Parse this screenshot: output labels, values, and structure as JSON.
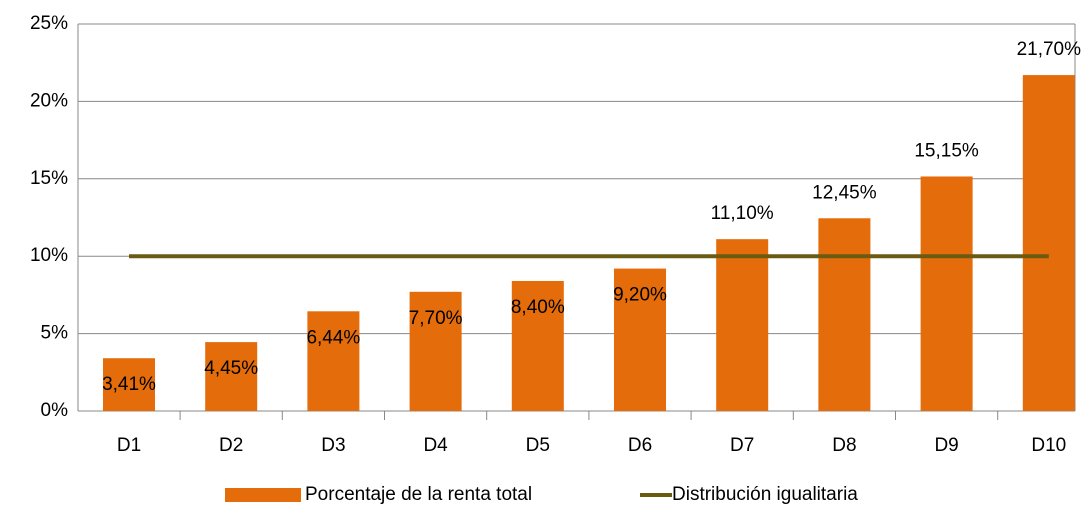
{
  "chart_data": {
    "type": "bar",
    "categories": [
      "D1",
      "D2",
      "D3",
      "D4",
      "D5",
      "D6",
      "D7",
      "D8",
      "D9",
      "D10"
    ],
    "series": [
      {
        "name": "Porcentaje de la renta total",
        "type": "bar",
        "color": "#e46c0a",
        "values": [
          3.41,
          4.45,
          6.44,
          7.7,
          8.4,
          9.2,
          11.1,
          12.45,
          15.15,
          21.7
        ],
        "value_labels": [
          "3,41%",
          "4,45%",
          "6,44%",
          "7,70%",
          "8,40%",
          "9,20%",
          "11,10%",
          "12,45%",
          "15,15%",
          "21,70%"
        ]
      },
      {
        "name": "Distribución igualitaria",
        "type": "line",
        "color": "#6b5a12",
        "values": [
          10,
          10,
          10,
          10,
          10,
          10,
          10,
          10,
          10,
          10
        ]
      }
    ],
    "ylim": [
      0,
      25
    ],
    "yticks": [
      {
        "value": 0,
        "label": "0%"
      },
      {
        "value": 5,
        "label": "5%"
      },
      {
        "value": 10,
        "label": "10%"
      },
      {
        "value": 15,
        "label": "15%"
      },
      {
        "value": 20,
        "label": "20%"
      },
      {
        "value": 25,
        "label": "25%"
      }
    ],
    "grid": true,
    "legend": "bottom"
  }
}
